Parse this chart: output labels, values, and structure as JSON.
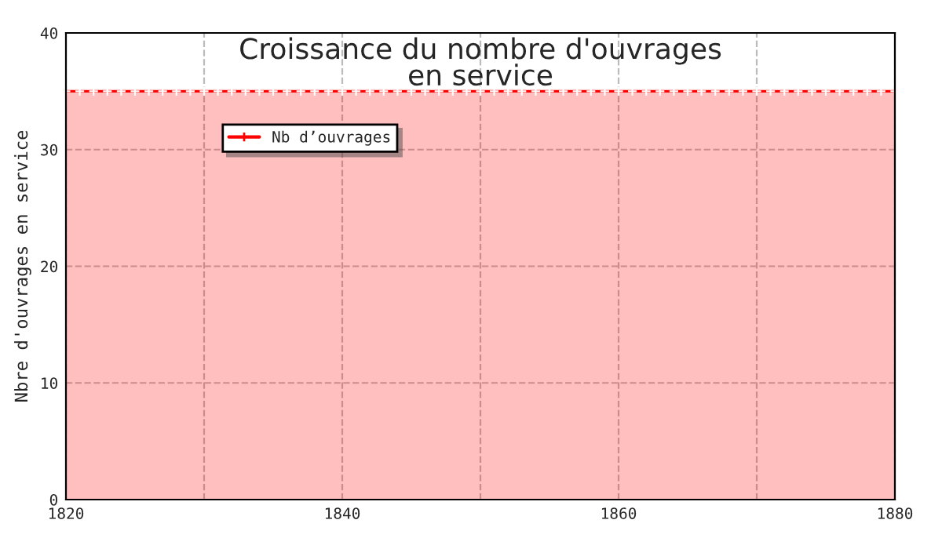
{
  "chart_data": {
    "type": "area",
    "title": "Croissance du nombre d'ouvrages\nen service",
    "ylabel": "Nbre d'ouvrages en service",
    "x": [
      1820,
      1821,
      1822,
      1823,
      1824,
      1825,
      1826,
      1827,
      1828,
      1829,
      1830,
      1831,
      1832,
      1833,
      1834,
      1835,
      1836,
      1837,
      1838,
      1839,
      1840,
      1841,
      1842,
      1843,
      1844,
      1845,
      1846,
      1847,
      1848,
      1849,
      1850,
      1851,
      1852,
      1853,
      1854,
      1855,
      1856,
      1857,
      1858,
      1859,
      1860,
      1861,
      1862,
      1863,
      1864,
      1865,
      1866,
      1867,
      1868,
      1869,
      1870,
      1871,
      1872,
      1873,
      1874,
      1875,
      1876,
      1877,
      1878,
      1879,
      1880
    ],
    "series": [
      {
        "name": "Nb d’ouvrages",
        "color": "#ff0000",
        "values": [
          35,
          35,
          35,
          35,
          35,
          35,
          35,
          35,
          35,
          35,
          35,
          35,
          35,
          35,
          35,
          35,
          35,
          35,
          35,
          35,
          35,
          35,
          35,
          35,
          35,
          35,
          35,
          35,
          35,
          35,
          35,
          35,
          35,
          35,
          35,
          35,
          35,
          35,
          35,
          35,
          35,
          35,
          35,
          35,
          35,
          35,
          35,
          35,
          35,
          35,
          35,
          35,
          35,
          35,
          35,
          35,
          35,
          35,
          35,
          35,
          35
        ]
      }
    ],
    "xlim": [
      1820,
      1880
    ],
    "ylim": [
      0,
      40
    ],
    "xticks": [
      1820,
      {
        "value": 1830,
        "label": null
      },
      1840,
      {
        "value": 1850,
        "label": null
      },
      1860,
      {
        "value": 1870,
        "label": null
      },
      1880
    ],
    "yticks": [
      0,
      10,
      20,
      30,
      40
    ],
    "grid": true,
    "legend": "top left",
    "marker": "cross",
    "line_style": "solid"
  }
}
